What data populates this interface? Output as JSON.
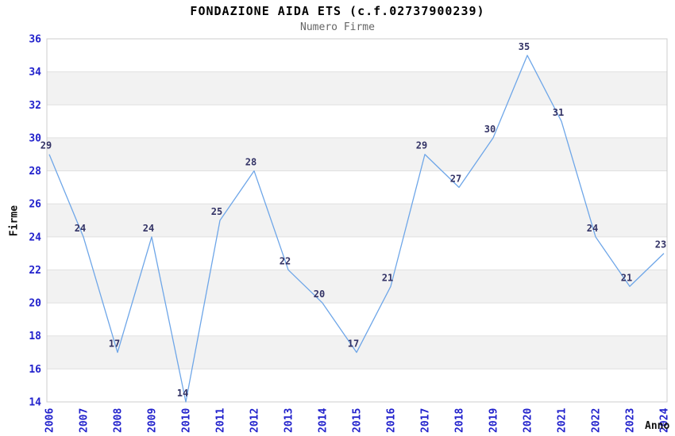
{
  "title": "FONDAZIONE AIDA ETS (c.f.02737900239)",
  "subtitle": "Numero Firme",
  "chart_data": {
    "type": "line",
    "title": "FONDAZIONE AIDA ETS (c.f.02737900239)",
    "subtitle": "Numero Firme",
    "xlabel": "Anno",
    "ylabel": "Firme",
    "x": [
      "2006",
      "2007",
      "2008",
      "2009",
      "2010",
      "2011",
      "2012",
      "2013",
      "2014",
      "2015",
      "2016",
      "2017",
      "2018",
      "2019",
      "2020",
      "2021",
      "2022",
      "2023",
      "2024"
    ],
    "values": [
      29,
      24,
      17,
      24,
      14,
      25,
      28,
      22,
      20,
      17,
      21,
      29,
      27,
      30,
      35,
      31,
      24,
      21,
      23
    ],
    "ylim": [
      14,
      36
    ],
    "ytick_step": 2,
    "grid": true,
    "alternating_bands": true,
    "legend": "none",
    "data_labels_visible": true
  },
  "colors": {
    "line": "#6ea6e8",
    "tick_label": "#2222cc",
    "data_label": "#333366",
    "band": "#f2f2f2",
    "grid": "#e0e0e0",
    "border": "#cccccc",
    "title": "#000000",
    "subtitle": "#666666",
    "axis_title": "#111111",
    "background": "#ffffff"
  }
}
